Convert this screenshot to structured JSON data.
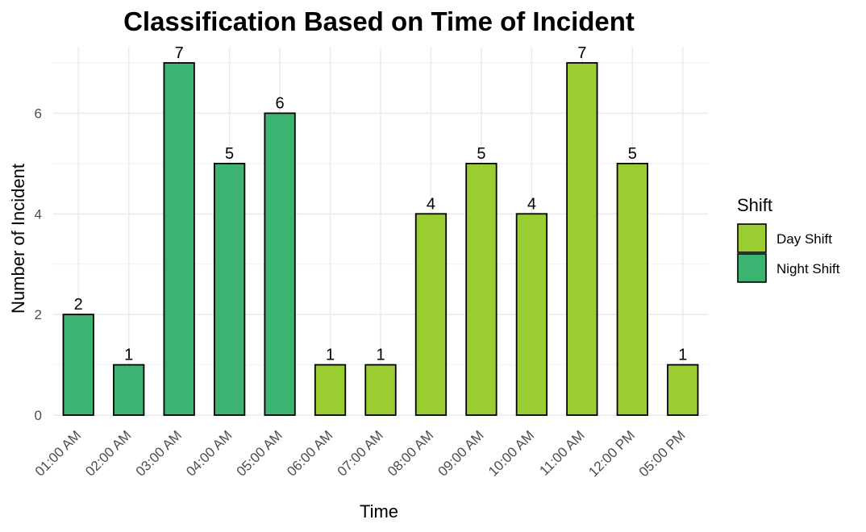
{
  "chart_data": {
    "type": "bar",
    "title": "Classification Based on Time of Incident",
    "xlabel": "Time",
    "ylabel": "Number of Incident",
    "categories": [
      "01:00 AM",
      "02:00 AM",
      "03:00 AM",
      "04:00 AM",
      "05:00 AM",
      "06:00 AM",
      "07:00 AM",
      "08:00 AM",
      "09:00 AM",
      "10:00 AM",
      "11:00 AM",
      "12:00 PM",
      "05:00 PM"
    ],
    "values": [
      2,
      1,
      7,
      5,
      6,
      1,
      1,
      4,
      5,
      4,
      7,
      5,
      1
    ],
    "shift": [
      "Night Shift",
      "Night Shift",
      "Night Shift",
      "Night Shift",
      "Night Shift",
      "Day Shift",
      "Day Shift",
      "Day Shift",
      "Day Shift",
      "Day Shift",
      "Day Shift",
      "Day Shift",
      "Day Shift"
    ],
    "ylim": [
      0,
      7
    ],
    "yticks": [
      0,
      2,
      4,
      6
    ],
    "grid": true,
    "legend": {
      "title": "Shift",
      "position": "right",
      "entries": [
        {
          "label": "Day Shift",
          "color": "#9acd32"
        },
        {
          "label": "Night Shift",
          "color": "#3cb371"
        }
      ]
    }
  }
}
